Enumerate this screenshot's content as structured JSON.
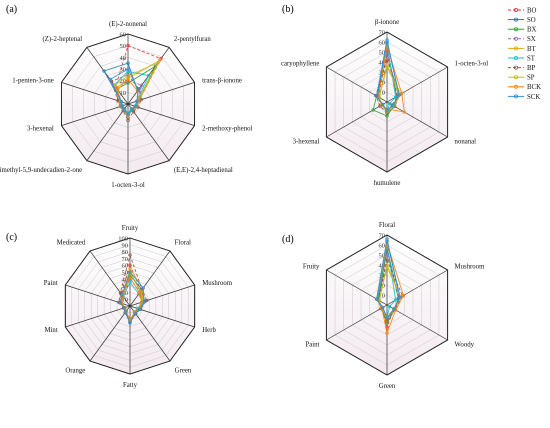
{
  "figure": {
    "series_names": [
      "BO",
      "SO",
      "BX",
      "SX",
      "BT",
      "ST",
      "BP",
      "SP",
      "BCK",
      "SCK"
    ],
    "series_colors": [
      "#e8312f",
      "#1f77b4",
      "#2ca02c",
      "#9467bd",
      "#e6a817",
      "#17becf",
      "#8c564b",
      "#bcbd22",
      "#ff7f0e",
      "#2f8fd8"
    ],
    "series_dashed": [
      true,
      false,
      false,
      true,
      false,
      false,
      true,
      false,
      false,
      false
    ]
  },
  "chart_data": [
    {
      "type": "radar",
      "panel_label": "(a)",
      "axes": [
        "(E)-2-nonenal",
        "2-pentylfuran",
        "trans-β-ionone",
        "2-methoxy-phenol",
        "(E,E)-2,4-heptadienal",
        "1-octen-3-ol",
        "6,10-dimethyl-5,9-undecadien-2-one",
        "3-hexenal",
        "1-penten-3-one",
        "(Z)-2-heptenal"
      ],
      "ticks": [
        10,
        20,
        30,
        40,
        50,
        60
      ],
      "rmax": 60,
      "series": [
        {
          "name": "BO",
          "values": [
            50,
            48,
            10,
            8,
            6,
            9,
            6,
            5,
            9,
            18
          ]
        },
        {
          "name": "SO",
          "values": [
            35,
            14,
            9,
            7,
            6,
            10,
            6,
            6,
            6,
            35
          ]
        },
        {
          "name": "BX",
          "values": [
            18,
            40,
            9,
            7,
            5,
            8,
            5,
            6,
            6,
            16
          ]
        },
        {
          "name": "SX",
          "values": [
            20,
            20,
            10,
            8,
            7,
            9,
            6,
            6,
            8,
            15
          ]
        },
        {
          "name": "BT",
          "values": [
            22,
            46,
            10,
            7,
            6,
            10,
            7,
            6,
            7,
            15
          ]
        },
        {
          "name": "ST",
          "values": [
            28,
            30,
            8,
            6,
            5,
            8,
            5,
            5,
            6,
            20
          ]
        },
        {
          "name": "BP",
          "values": [
            25,
            16,
            12,
            9,
            8,
            14,
            7,
            7,
            9,
            24
          ]
        },
        {
          "name": "SP",
          "values": [
            24,
            44,
            9,
            7,
            6,
            9,
            6,
            6,
            7,
            20
          ]
        },
        {
          "name": "BCK",
          "values": [
            21,
            14,
            9,
            8,
            6,
            10,
            6,
            7,
            7,
            17
          ]
        },
        {
          "name": "SCK",
          "values": [
            30,
            15,
            8,
            7,
            6,
            9,
            6,
            6,
            6,
            26
          ]
        }
      ]
    },
    {
      "type": "radar",
      "panel_label": "(b)",
      "axes": [
        "β-ionone",
        "1-octen-3-ol",
        "nonanal",
        "humulene",
        "3-hexenal",
        "caryophyllene"
      ],
      "ticks": [
        10,
        20,
        30,
        40,
        50,
        60,
        70
      ],
      "rmax": 70,
      "series": [
        {
          "name": "BO",
          "values": [
            48,
            12,
            6,
            10,
            6,
            10
          ]
        },
        {
          "name": "SO",
          "values": [
            60,
            14,
            7,
            9,
            5,
            11
          ]
        },
        {
          "name": "BX",
          "values": [
            55,
            11,
            8,
            14,
            16,
            12
          ]
        },
        {
          "name": "SX",
          "values": [
            50,
            13,
            7,
            8,
            7,
            10
          ]
        },
        {
          "name": "BT",
          "values": [
            38,
            14,
            8,
            9,
            6,
            9
          ]
        },
        {
          "name": "ST",
          "values": [
            58,
            10,
            3,
            10,
            5,
            12
          ]
        },
        {
          "name": "BP",
          "values": [
            42,
            15,
            9,
            11,
            8,
            13
          ]
        },
        {
          "name": "SP",
          "values": [
            35,
            16,
            8,
            9,
            6,
            9
          ]
        },
        {
          "name": "BCK",
          "values": [
            56,
            17,
            20,
            7,
            6,
            10
          ]
        },
        {
          "name": "SCK",
          "values": [
            62,
            14,
            7,
            8,
            5,
            12
          ]
        }
      ]
    },
    {
      "type": "radar",
      "panel_label": "(c)",
      "axes": [
        "Fruity",
        "Floral",
        "Mushroom",
        "Herb",
        "Green",
        "Fatty",
        "Orange",
        "Mint",
        "Paint",
        "Medicated"
      ],
      "ticks": [
        10,
        20,
        30,
        40,
        50,
        60,
        70,
        80,
        90,
        100
      ],
      "rmax": 100,
      "series": [
        {
          "name": "BO",
          "values": [
            60,
            28,
            22,
            14,
            12,
            22,
            10,
            8,
            16,
            22
          ]
        },
        {
          "name": "SO",
          "values": [
            45,
            30,
            22,
            15,
            14,
            24,
            12,
            9,
            15,
            20
          ]
        },
        {
          "name": "BX",
          "values": [
            50,
            26,
            18,
            13,
            12,
            20,
            10,
            8,
            14,
            18
          ]
        },
        {
          "name": "SX",
          "values": [
            40,
            25,
            24,
            16,
            13,
            22,
            11,
            9,
            15,
            20
          ]
        },
        {
          "name": "BT",
          "values": [
            55,
            32,
            20,
            14,
            12,
            21,
            10,
            8,
            14,
            19
          ]
        },
        {
          "name": "ST",
          "values": [
            35,
            22,
            19,
            12,
            11,
            24,
            9,
            8,
            13,
            17
          ]
        },
        {
          "name": "BP",
          "values": [
            75,
            30,
            26,
            16,
            14,
            23,
            12,
            10,
            17,
            24
          ]
        },
        {
          "name": "SP",
          "values": [
            48,
            27,
            20,
            14,
            12,
            21,
            10,
            8,
            14,
            18
          ]
        },
        {
          "name": "BCK",
          "values": [
            42,
            24,
            18,
            13,
            11,
            22,
            10,
            8,
            13,
            18
          ]
        },
        {
          "name": "SCK",
          "values": [
            50,
            33,
            22,
            15,
            13,
            25,
            11,
            9,
            15,
            20
          ]
        }
      ]
    },
    {
      "type": "radar",
      "panel_label": "(d)",
      "axes": [
        "Floral",
        "Mushroom",
        "Woody",
        "Green",
        "Paint",
        "Fruity"
      ],
      "ticks": [
        10,
        20,
        30,
        40,
        50,
        60,
        70
      ],
      "rmax": 70,
      "series": [
        {
          "name": "BO",
          "values": [
            55,
            14,
            8,
            22,
            6,
            10
          ]
        },
        {
          "name": "SO",
          "values": [
            64,
            15,
            8,
            14,
            5,
            11
          ]
        },
        {
          "name": "BX",
          "values": [
            58,
            13,
            9,
            18,
            6,
            10
          ]
        },
        {
          "name": "SX",
          "values": [
            50,
            14,
            8,
            12,
            6,
            9
          ]
        },
        {
          "name": "BT",
          "values": [
            40,
            16,
            9,
            15,
            6,
            9
          ]
        },
        {
          "name": "ST",
          "values": [
            60,
            10,
            3,
            12,
            5,
            11
          ]
        },
        {
          "name": "BP",
          "values": [
            45,
            18,
            9,
            16,
            7,
            10
          ]
        },
        {
          "name": "SP",
          "values": [
            38,
            16,
            8,
            13,
            6,
            9
          ]
        },
        {
          "name": "BCK",
          "values": [
            62,
            19,
            10,
            28,
            6,
            12
          ]
        },
        {
          "name": "SCK",
          "values": [
            66,
            15,
            8,
            13,
            5,
            12
          ]
        }
      ]
    }
  ]
}
